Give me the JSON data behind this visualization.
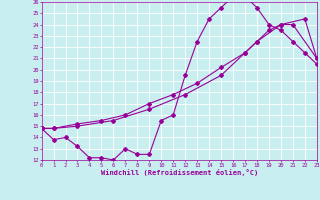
{
  "xlabel": "Windchill (Refroidissement éolien,°C)",
  "bg_color": "#c8eef0",
  "line_color": "#990099",
  "grid_color": "#ffffff",
  "xlim": [
    0,
    23
  ],
  "ylim": [
    12,
    26
  ],
  "xticks": [
    0,
    1,
    2,
    3,
    4,
    5,
    6,
    7,
    8,
    9,
    10,
    11,
    12,
    13,
    14,
    15,
    16,
    17,
    18,
    19,
    20,
    21,
    22,
    23
  ],
  "yticks": [
    12,
    13,
    14,
    15,
    16,
    17,
    18,
    19,
    20,
    21,
    22,
    23,
    24,
    25,
    26
  ],
  "line1_x": [
    0,
    1,
    2,
    3,
    4,
    5,
    6,
    7,
    8,
    9,
    10,
    11,
    12,
    13,
    14,
    15,
    16,
    17,
    18,
    19,
    20,
    21,
    22,
    23
  ],
  "line1_y": [
    14.8,
    13.8,
    14.0,
    13.2,
    12.2,
    12.2,
    12.0,
    13.0,
    12.5,
    12.5,
    15.5,
    16.0,
    19.5,
    22.5,
    24.5,
    25.5,
    26.5,
    26.5,
    25.5,
    24.0,
    23.5,
    22.5,
    21.5,
    20.5
  ],
  "line2_x": [
    0,
    1,
    3,
    5,
    7,
    9,
    11,
    13,
    15,
    17,
    18,
    19,
    20,
    22,
    23
  ],
  "line2_y": [
    14.8,
    14.8,
    15.2,
    15.5,
    16.0,
    17.0,
    17.8,
    18.8,
    20.2,
    21.5,
    22.5,
    23.5,
    24.0,
    24.5,
    21.0
  ],
  "line3_x": [
    0,
    1,
    3,
    6,
    9,
    12,
    15,
    17,
    18,
    20,
    21,
    23
  ],
  "line3_y": [
    14.8,
    14.8,
    15.0,
    15.5,
    16.5,
    17.8,
    19.5,
    21.5,
    22.5,
    24.0,
    24.0,
    21.0
  ]
}
